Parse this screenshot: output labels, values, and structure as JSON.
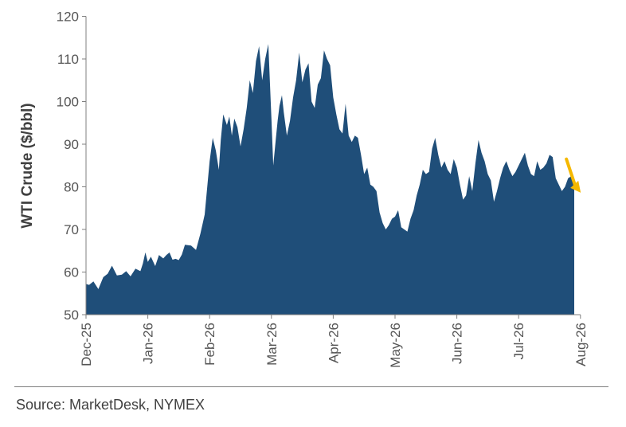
{
  "chart_data": {
    "type": "area",
    "title": "",
    "ylabel": "WTI Crude ($/bbl)",
    "xlabel": "",
    "ylim": [
      50,
      120
    ],
    "yticks": [
      50,
      60,
      70,
      80,
      90,
      100,
      110,
      120
    ],
    "x_tick_labels": [
      "Dec-25",
      "Jan-26",
      "Feb-26",
      "Mar-26",
      "Apr-26",
      "May-26",
      "Jun-26",
      "Jul-26",
      "Aug-26"
    ],
    "grid": false,
    "legend": "none",
    "colors": {
      "area": "#1f4e79",
      "arrow": "#f5b800",
      "axis": "#7f7f7f"
    },
    "annotation": {
      "type": "arrow",
      "direction": "down-right",
      "at_month": 7.85,
      "from_value": 86.5,
      "to_value": 79
    },
    "series": [
      {
        "x_months": [
          0,
          0.05,
          0.12,
          0.2,
          0.28,
          0.35,
          0.42,
          0.5,
          0.58,
          0.65,
          0.72,
          0.8,
          0.88,
          0.92,
          0.96,
          1.0,
          1.05,
          1.12,
          1.18,
          1.25,
          1.3,
          1.35,
          1.4,
          1.45,
          1.5,
          1.55,
          1.6,
          1.7,
          1.78,
          1.85,
          1.92,
          2.0,
          2.05,
          2.1,
          2.15,
          2.18,
          2.22,
          2.28,
          2.32,
          2.36,
          2.4,
          2.45,
          2.5,
          2.55,
          2.6,
          2.65,
          2.7,
          2.75,
          2.8,
          2.85,
          2.9,
          2.95,
          3.0,
          3.03,
          3.07,
          3.1,
          3.13,
          3.17,
          3.2,
          3.25,
          3.3,
          3.35,
          3.4,
          3.45,
          3.5,
          3.55,
          3.6,
          3.65,
          3.7,
          3.75,
          3.8,
          3.85,
          3.9,
          3.95,
          4.0,
          4.05,
          4.1,
          4.15,
          4.2,
          4.25,
          4.3,
          4.35,
          4.4,
          4.45,
          4.5,
          4.55,
          4.6,
          4.65,
          4.7,
          4.75,
          4.8,
          4.85,
          4.9,
          4.95,
          5.0,
          5.05,
          5.1,
          5.15,
          5.2,
          5.25,
          5.3,
          5.35,
          5.4,
          5.45,
          5.5,
          5.55,
          5.6,
          5.65,
          5.7,
          5.75,
          5.8,
          5.85,
          5.9,
          5.95,
          6.0,
          6.05,
          6.1,
          6.15,
          6.2,
          6.25,
          6.3,
          6.35,
          6.4,
          6.45,
          6.5,
          6.55,
          6.6,
          6.65,
          6.7,
          6.75,
          6.8,
          6.85,
          6.9,
          6.95,
          7.0,
          7.05,
          7.1,
          7.15,
          7.2,
          7.25,
          7.3,
          7.35,
          7.4,
          7.45,
          7.5,
          7.55,
          7.6,
          7.65,
          7.7,
          7.75,
          7.8,
          7.85,
          7.9
        ],
        "values": [
          57.2,
          57.0,
          57.8,
          56.0,
          58.8,
          59.6,
          61.5,
          59.2,
          59.4,
          60.2,
          59.0,
          60.8,
          60.2,
          62.0,
          64.6,
          62.4,
          63.6,
          61.4,
          64.0,
          63.2,
          64.0,
          64.6,
          62.9,
          63.1,
          62.8,
          64.1,
          66.4,
          66.2,
          65.2,
          69.0,
          73.5,
          86.0,
          91.5,
          88.5,
          84.0,
          91.0,
          97.0,
          94.5,
          96.5,
          92.0,
          96.0,
          94.0,
          89.5,
          93.5,
          98.5,
          105.0,
          102.0,
          109.5,
          113.0,
          105.0,
          110.0,
          113.5,
          96.0,
          85.0,
          91.0,
          95.5,
          99.0,
          101.5,
          97.5,
          92.0,
          95.5,
          101.0,
          105.0,
          111.5,
          104.5,
          107.5,
          109.0,
          100.0,
          98.5,
          104.0,
          105.5,
          112.0,
          110.0,
          108.5,
          101.0,
          97.0,
          93.5,
          92.5,
          99.5,
          92.0,
          90.5,
          92.0,
          91.5,
          87.5,
          83.0,
          84.5,
          80.5,
          80.0,
          79.0,
          74.0,
          71.5,
          70.0,
          71.0,
          72.5,
          73.0,
          74.5,
          70.5,
          70.0,
          69.5,
          72.5,
          74.5,
          78.0,
          80.5,
          84.0,
          83.0,
          83.5,
          89.0,
          91.5,
          87.5,
          84.5,
          86.0,
          84.0,
          83.0,
          86.5,
          84.5,
          80.5,
          77.0,
          78.0,
          82.5,
          79.0,
          85.5,
          91.0,
          88.0,
          86.0,
          83.0,
          81.5,
          76.5,
          79.0,
          82.0,
          84.5,
          86.0,
          84.0,
          82.5,
          83.5,
          85.0,
          86.5,
          88.0,
          85.0,
          83.0,
          82.5,
          86.0,
          84.0,
          84.5,
          85.5,
          87.5,
          87.0,
          82.0,
          80.5,
          79.0,
          80.0,
          82.0,
          82.5,
          82.0
        ]
      }
    ]
  },
  "footer": {
    "source": "Source: MarketDesk, NYMEX"
  }
}
